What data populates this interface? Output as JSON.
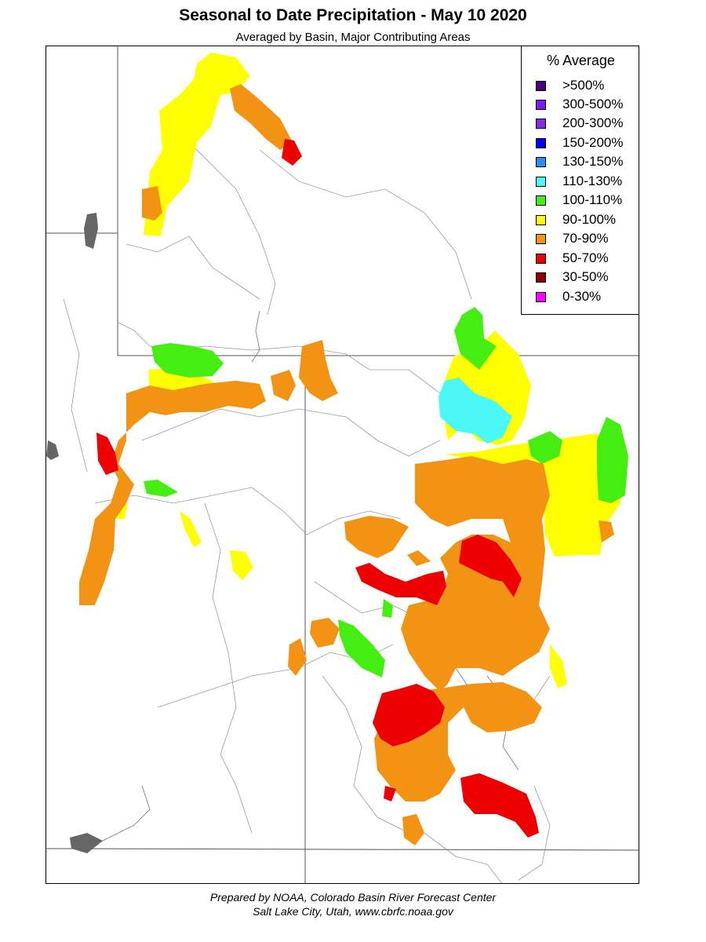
{
  "title": "Seasonal to Date Precipitation - May 10 2020",
  "subtitle": "Averaged by Basin, Major Contributing Areas",
  "legend": {
    "title": "% Average",
    "items": [
      {
        "label": ">500%",
        "color": "#4b0082"
      },
      {
        "label": "300-500%",
        "color": "#7a1cf0"
      },
      {
        "label": "200-300%",
        "color": "#8a2be2"
      },
      {
        "label": "150-200%",
        "color": "#0000ff"
      },
      {
        "label": "130-150%",
        "color": "#2e8ef0"
      },
      {
        "label": "110-130%",
        "color": "#4cf7f7"
      },
      {
        "label": "100-110%",
        "color": "#44ee10"
      },
      {
        "label": "90-100%",
        "color": "#ffff00"
      },
      {
        "label": "70-90%",
        "color": "#f39313"
      },
      {
        "label": "50-70%",
        "color": "#ee0000"
      },
      {
        "label": "30-50%",
        "color": "#8b0000"
      },
      {
        "label": "0-30%",
        "color": "#ff00ff"
      }
    ]
  },
  "footer": {
    "line1": "Prepared by NOAA, Colorado Basin River Forecast Center",
    "line2": "Salt Lake City, Utah, www.cbrfc.noaa.gov"
  }
}
